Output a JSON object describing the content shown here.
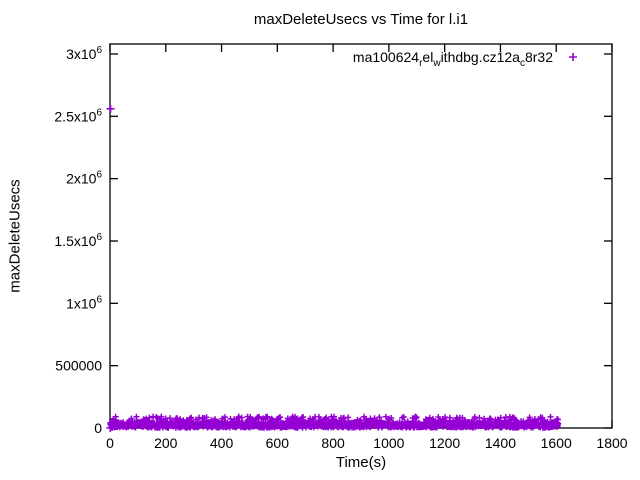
{
  "chart_data": {
    "type": "scatter",
    "title": "maxDeleteUsecs vs Time for l.i1",
    "xlabel": "Time(s)",
    "ylabel": "maxDeleteUsecs",
    "xlim": [
      0,
      1800
    ],
    "ylim": [
      0,
      3080000
    ],
    "grid": false,
    "legend_position": "top-right-inside",
    "background_color": "#ffffff",
    "axis_color": "#000000",
    "xticks": [
      {
        "value": 0,
        "label": "0"
      },
      {
        "value": 200,
        "label": "200"
      },
      {
        "value": 400,
        "label": "400"
      },
      {
        "value": 600,
        "label": "600"
      },
      {
        "value": 800,
        "label": "800"
      },
      {
        "value": 1000,
        "label": "1000"
      },
      {
        "value": 1200,
        "label": "1200"
      },
      {
        "value": 1400,
        "label": "1400"
      },
      {
        "value": 1600,
        "label": "1600"
      },
      {
        "value": 1800,
        "label": "1800"
      }
    ],
    "yticks": [
      {
        "value": 0,
        "label": "0"
      },
      {
        "value": 500000,
        "label": "500000"
      },
      {
        "value": 1000000,
        "label": "1x10^6"
      },
      {
        "value": 1500000,
        "label": "1.5x10^6"
      },
      {
        "value": 2000000,
        "label": "2x10^6"
      },
      {
        "value": 2500000,
        "label": "2.5x10^6"
      },
      {
        "value": 3000000,
        "label": "3x10^6"
      }
    ],
    "series": [
      {
        "name": "ma100624_rel_withdbg.cz12a_c8r32",
        "legend_parts": [
          {
            "t": "ma100624",
            "sub": false
          },
          {
            "t": "r",
            "sub": true
          },
          {
            "t": "el",
            "sub": false
          },
          {
            "t": "w",
            "sub": true
          },
          {
            "t": "ithdbg.cz12a",
            "sub": false
          },
          {
            "t": "c",
            "sub": true
          },
          {
            "t": "8r32",
            "sub": false
          }
        ],
        "color": "#9400D3",
        "marker": "plus",
        "outlier_points": [
          {
            "x": 2,
            "y": 2560000
          },
          {
            "x": 1,
            "y": 0
          }
        ],
        "band": {
          "x_start": 0,
          "x_end": 1608,
          "y_min": 2000,
          "y_max": 48000,
          "spike_y_max": 92000,
          "spike_fraction": 0.15,
          "approx_points": 1500
        }
      }
    ]
  }
}
